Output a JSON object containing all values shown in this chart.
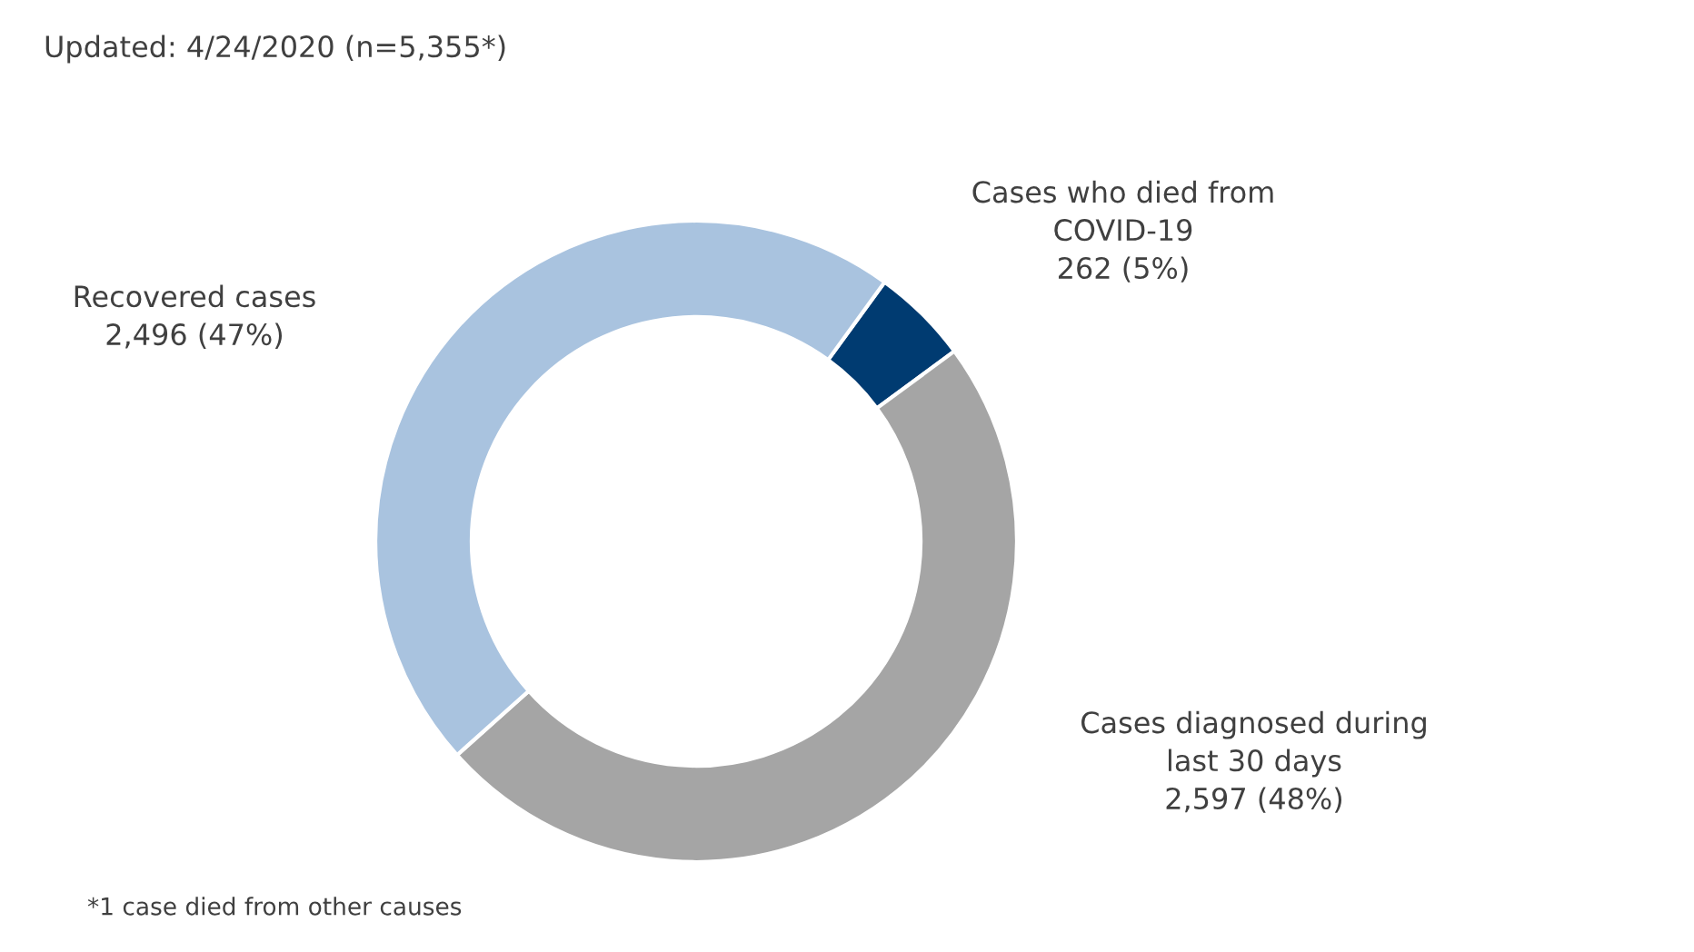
{
  "chart_data": {
    "type": "donut",
    "title": "Updated: 4/24/2020 (n=5,355*)",
    "categories": [
      "Cases who died from\nCOVID-19",
      "Cases diagnosed during\nlast 30 days",
      "Recovered cases"
    ],
    "values": [
      262,
      2597,
      2496
    ],
    "value_labels": [
      "262 (5%)",
      "2,597 (48%)",
      "2,496 (47%)"
    ],
    "colors": [
      "#003b71",
      "#a5a5a5",
      "#a9c3df"
    ],
    "annotations": [
      "*1 case died from other causes"
    ],
    "legend": false
  }
}
